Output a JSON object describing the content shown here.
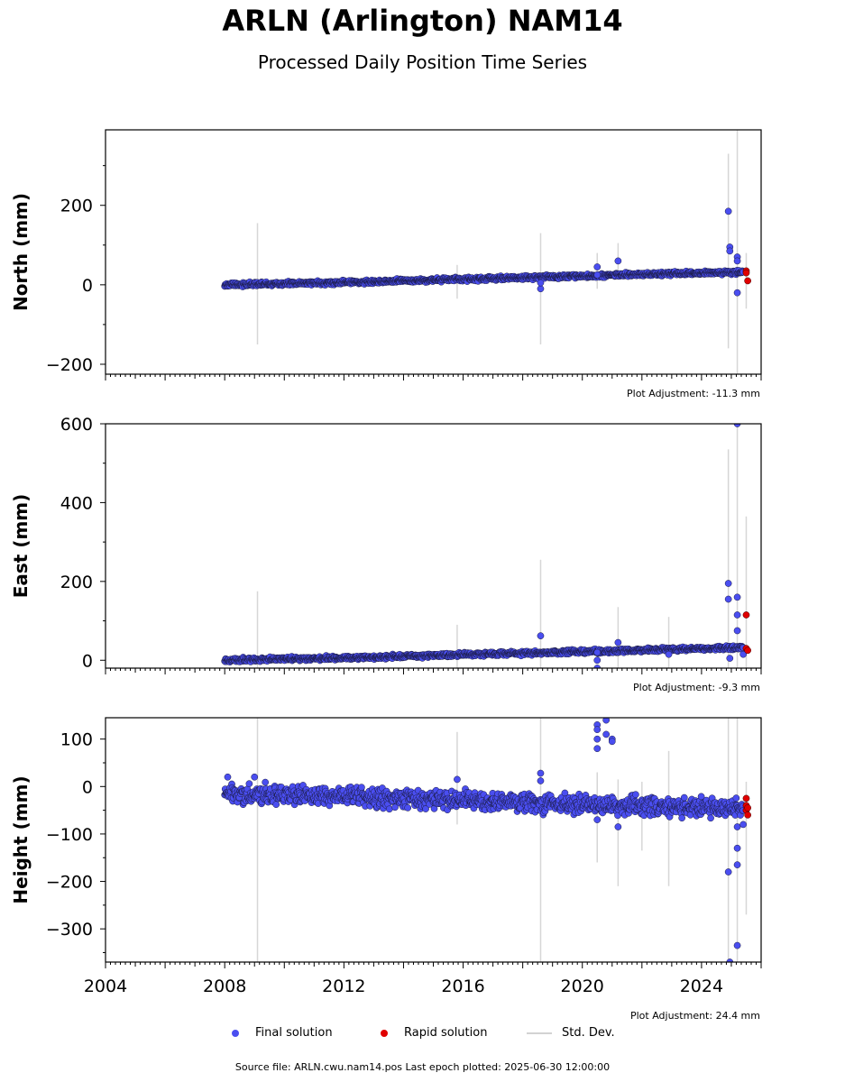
{
  "title": "ARLN (Arlington) NAM14",
  "subtitle": "Processed Daily Position Time Series",
  "legend": {
    "final": "Final solution",
    "rapid": "Rapid solution",
    "std": "Std. Dev."
  },
  "footer": {
    "source": "Source file: ARLN.cwu.nam14.pos  Last epoch plotted: 2025-06-30 12:00:00"
  },
  "colors": {
    "final": "#4a4ef0",
    "rapid": "#e00000",
    "std": "#cccccc"
  },
  "chart_data": [
    {
      "type": "scatter",
      "ylabel": "North (mm)",
      "adjustment": "Plot Adjustment: -11.3 mm",
      "xlim": [
        2004,
        2026
      ],
      "ylim": [
        -225,
        390
      ],
      "yticks": [
        -200,
        0,
        200
      ],
      "ytick_labels": [
        "−200",
        "0",
        "200"
      ],
      "trend": [
        [
          2008.0,
          0
        ],
        [
          2012.0,
          6
        ],
        [
          2016.0,
          14
        ],
        [
          2020.0,
          22
        ],
        [
          2024.0,
          30
        ],
        [
          2025.4,
          32
        ]
      ],
      "outliers": [
        [
          2018.6,
          -10
        ],
        [
          2018.6,
          5
        ],
        [
          2020.5,
          25
        ],
        [
          2020.5,
          45
        ],
        [
          2021.2,
          60
        ],
        [
          2024.9,
          185
        ],
        [
          2024.95,
          95
        ],
        [
          2024.95,
          85
        ],
        [
          2025.2,
          -20
        ],
        [
          2025.2,
          70
        ],
        [
          2025.2,
          60
        ]
      ],
      "error_bars": [
        [
          2009.1,
          -150,
          155
        ],
        [
          2015.8,
          -35,
          50
        ],
        [
          2018.6,
          -150,
          130
        ],
        [
          2020.5,
          -10,
          80
        ],
        [
          2021.2,
          30,
          105
        ],
        [
          2024.9,
          -160,
          330
        ],
        [
          2025.2,
          -240,
          390
        ],
        [
          2025.5,
          -60,
          80
        ]
      ],
      "rapid": [
        [
          2025.5,
          35
        ],
        [
          2025.5,
          30
        ],
        [
          2025.55,
          10
        ]
      ]
    },
    {
      "type": "scatter",
      "ylabel": "East (mm)",
      "adjustment": "Plot Adjustment: -9.3 mm",
      "xlim": [
        2004,
        2026
      ],
      "ylim": [
        -20,
        600
      ],
      "yticks": [
        0,
        200,
        400,
        600
      ],
      "ytick_labels": [
        "0",
        "200",
        "400",
        "600"
      ],
      "trend": [
        [
          2008.0,
          0
        ],
        [
          2012.0,
          6
        ],
        [
          2016.0,
          14
        ],
        [
          2020.0,
          22
        ],
        [
          2024.0,
          30
        ],
        [
          2025.4,
          32
        ]
      ],
      "outliers": [
        [
          2018.6,
          62
        ],
        [
          2020.5,
          0
        ],
        [
          2020.5,
          20
        ],
        [
          2020.5,
          -20
        ],
        [
          2021.2,
          45
        ],
        [
          2022.9,
          15
        ],
        [
          2024.9,
          195
        ],
        [
          2024.9,
          155
        ],
        [
          2024.95,
          5
        ],
        [
          2025.2,
          160
        ],
        [
          2025.2,
          115
        ],
        [
          2025.2,
          75
        ],
        [
          2025.2,
          600
        ],
        [
          2025.4,
          15
        ]
      ],
      "error_bars": [
        [
          2009.1,
          -20,
          175
        ],
        [
          2015.8,
          -20,
          90
        ],
        [
          2018.6,
          -20,
          255
        ],
        [
          2021.2,
          -20,
          135
        ],
        [
          2022.9,
          -20,
          110
        ],
        [
          2024.9,
          -20,
          535
        ],
        [
          2025.2,
          -20,
          600
        ],
        [
          2025.5,
          -20,
          365
        ]
      ],
      "rapid": [
        [
          2025.5,
          115
        ],
        [
          2025.5,
          30
        ],
        [
          2025.55,
          25
        ]
      ]
    },
    {
      "type": "scatter",
      "ylabel": "Height (mm)",
      "adjustment": "Plot Adjustment: 24.4 mm",
      "xlim": [
        2004,
        2026
      ],
      "xticks": [
        2004,
        2008,
        2012,
        2016,
        2020,
        2024
      ],
      "xtick_labels": [
        "2004",
        "2008",
        "2012",
        "2016",
        "2020",
        "2024"
      ],
      "ylim": [
        -370,
        145
      ],
      "yticks": [
        -300,
        -200,
        -100,
        0,
        100
      ],
      "ytick_labels": [
        "−300",
        "−200",
        "−100",
        "0",
        "100"
      ],
      "trend": [
        [
          2008.0,
          -15
        ],
        [
          2012.0,
          -20
        ],
        [
          2016.0,
          -28
        ],
        [
          2020.0,
          -38
        ],
        [
          2024.0,
          -45
        ],
        [
          2025.4,
          -48
        ]
      ],
      "outliers": [
        [
          2008.1,
          20
        ],
        [
          2009.0,
          20
        ],
        [
          2015.8,
          15
        ],
        [
          2018.6,
          28
        ],
        [
          2018.6,
          12
        ],
        [
          2020.5,
          130
        ],
        [
          2020.5,
          120
        ],
        [
          2020.5,
          100
        ],
        [
          2020.5,
          80
        ],
        [
          2020.5,
          -70
        ],
        [
          2020.8,
          140
        ],
        [
          2020.8,
          110
        ],
        [
          2021.0,
          100
        ],
        [
          2021.0,
          95
        ],
        [
          2021.2,
          -85
        ],
        [
          2024.9,
          -180
        ],
        [
          2024.95,
          -370
        ],
        [
          2025.2,
          -130
        ],
        [
          2025.2,
          -165
        ],
        [
          2025.2,
          -335
        ],
        [
          2025.2,
          -85
        ],
        [
          2025.4,
          -80
        ]
      ],
      "error_bars": [
        [
          2009.1,
          -370,
          145
        ],
        [
          2015.8,
          -80,
          115
        ],
        [
          2018.6,
          -370,
          145
        ],
        [
          2020.5,
          -160,
          30
        ],
        [
          2021.2,
          -210,
          15
        ],
        [
          2022.0,
          -135,
          10
        ],
        [
          2022.9,
          -210,
          75
        ],
        [
          2024.9,
          -370,
          145
        ],
        [
          2025.2,
          -370,
          145
        ],
        [
          2025.5,
          -270,
          10
        ]
      ],
      "rapid": [
        [
          2025.5,
          -25
        ],
        [
          2025.5,
          -40
        ],
        [
          2025.5,
          -50
        ],
        [
          2025.55,
          -60
        ],
        [
          2025.55,
          -45
        ]
      ]
    }
  ]
}
